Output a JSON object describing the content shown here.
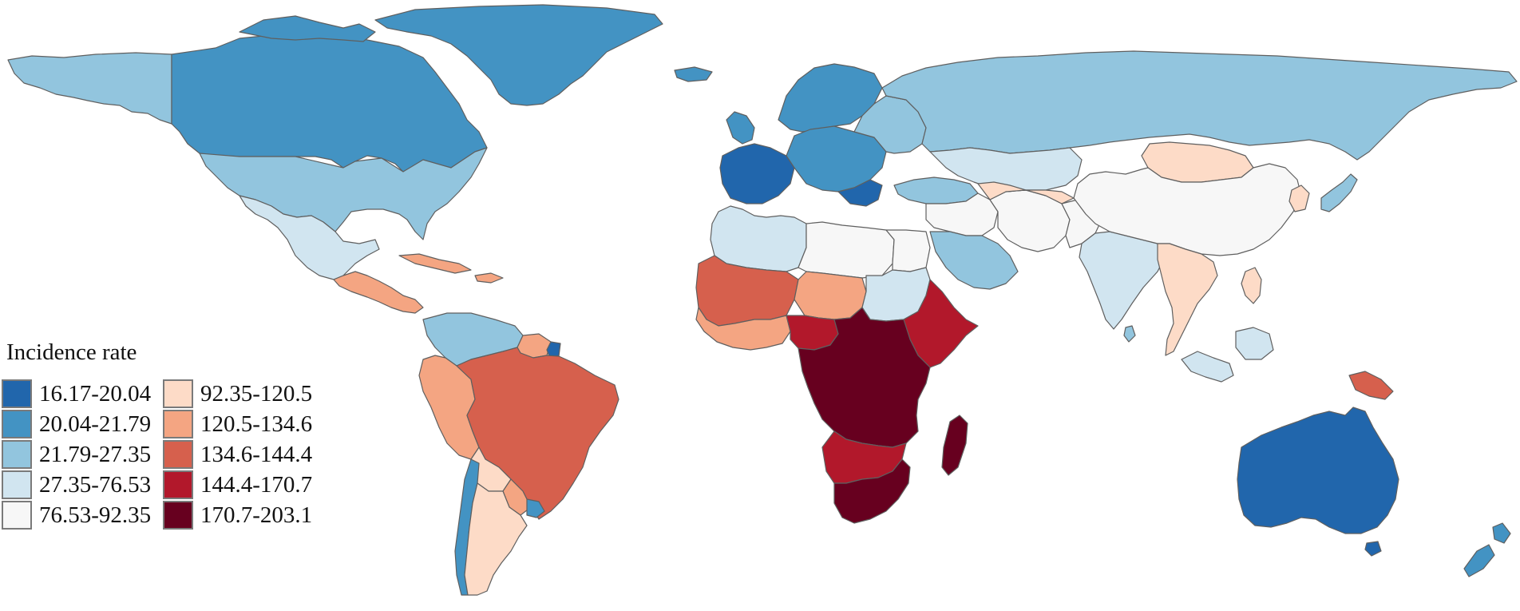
{
  "legend": {
    "title": "Incidence rate",
    "items": [
      {
        "range": "16.17-20.04",
        "color": "#2166ac"
      },
      {
        "range": "20.04-21.79",
        "color": "#4393c3"
      },
      {
        "range": "21.79-27.35",
        "color": "#92c5de"
      },
      {
        "range": "27.35-76.53",
        "color": "#d1e5f0"
      },
      {
        "range": "76.53-92.35",
        "color": "#f7f7f7"
      },
      {
        "range": "92.35-120.5",
        "color": "#fddbc7"
      },
      {
        "range": "120.5-134.6",
        "color": "#f4a582"
      },
      {
        "range": "134.6-144.4",
        "color": "#d6604d"
      },
      {
        "range": "144.4-170.7",
        "color": "#b2182b"
      },
      {
        "range": "170.7-203.1",
        "color": "#67001f"
      }
    ]
  },
  "regions": [
    {
      "name": "canada",
      "bin": 1
    },
    {
      "name": "greenland",
      "bin": 1
    },
    {
      "name": "alaska",
      "bin": 2
    },
    {
      "name": "usa",
      "bin": 2
    },
    {
      "name": "mexico",
      "bin": 3
    },
    {
      "name": "central-america",
      "bin": 6
    },
    {
      "name": "caribbean",
      "bin": 6
    },
    {
      "name": "colombia-venezuela",
      "bin": 2
    },
    {
      "name": "guyana-suriname",
      "bin": 6
    },
    {
      "name": "french-guiana",
      "bin": 0
    },
    {
      "name": "ecuador-peru",
      "bin": 6
    },
    {
      "name": "brazil",
      "bin": 7
    },
    {
      "name": "bolivia",
      "bin": 5
    },
    {
      "name": "paraguay",
      "bin": 6
    },
    {
      "name": "chile",
      "bin": 1
    },
    {
      "name": "argentina",
      "bin": 5
    },
    {
      "name": "uruguay",
      "bin": 1
    },
    {
      "name": "iceland",
      "bin": 1
    },
    {
      "name": "uk-ireland",
      "bin": 1
    },
    {
      "name": "scandinavia",
      "bin": 1
    },
    {
      "name": "western-europe",
      "bin": 0
    },
    {
      "name": "central-europe",
      "bin": 1
    },
    {
      "name": "eastern-europe",
      "bin": 2
    },
    {
      "name": "russia",
      "bin": 2
    },
    {
      "name": "turkey-caucasus",
      "bin": 2
    },
    {
      "name": "north-africa",
      "bin": 4
    },
    {
      "name": "morocco-algeria-west",
      "bin": 3
    },
    {
      "name": "egypt",
      "bin": 4
    },
    {
      "name": "west-africa-north",
      "bin": 7
    },
    {
      "name": "niger-chad",
      "bin": 6
    },
    {
      "name": "sudan",
      "bin": 3
    },
    {
      "name": "coastal-west-africa",
      "bin": 6
    },
    {
      "name": "nigeria",
      "bin": 8
    },
    {
      "name": "ethiopia-somalia",
      "bin": 8
    },
    {
      "name": "central-africa",
      "bin": 9
    },
    {
      "name": "southern-africa",
      "bin": 8
    },
    {
      "name": "south-africa",
      "bin": 9
    },
    {
      "name": "madagascar",
      "bin": 9
    },
    {
      "name": "middle-east",
      "bin": 4
    },
    {
      "name": "saudi-arabia",
      "bin": 2
    },
    {
      "name": "iran-central-asia",
      "bin": 4
    },
    {
      "name": "kazakhstan-north",
      "bin": 3
    },
    {
      "name": "central-asia-south",
      "bin": 5
    },
    {
      "name": "india",
      "bin": 3
    },
    {
      "name": "sri-lanka",
      "bin": 2
    },
    {
      "name": "mongolia",
      "bin": 5
    },
    {
      "name": "china",
      "bin": 4
    },
    {
      "name": "korea",
      "bin": 5
    },
    {
      "name": "japan",
      "bin": 2
    },
    {
      "name": "southeast-asia",
      "bin": 5
    },
    {
      "name": "indonesia",
      "bin": 3
    },
    {
      "name": "philippines",
      "bin": 5
    },
    {
      "name": "papua-new-guinea",
      "bin": 7
    },
    {
      "name": "australia",
      "bin": 0
    },
    {
      "name": "new-zealand",
      "bin": 1
    }
  ]
}
